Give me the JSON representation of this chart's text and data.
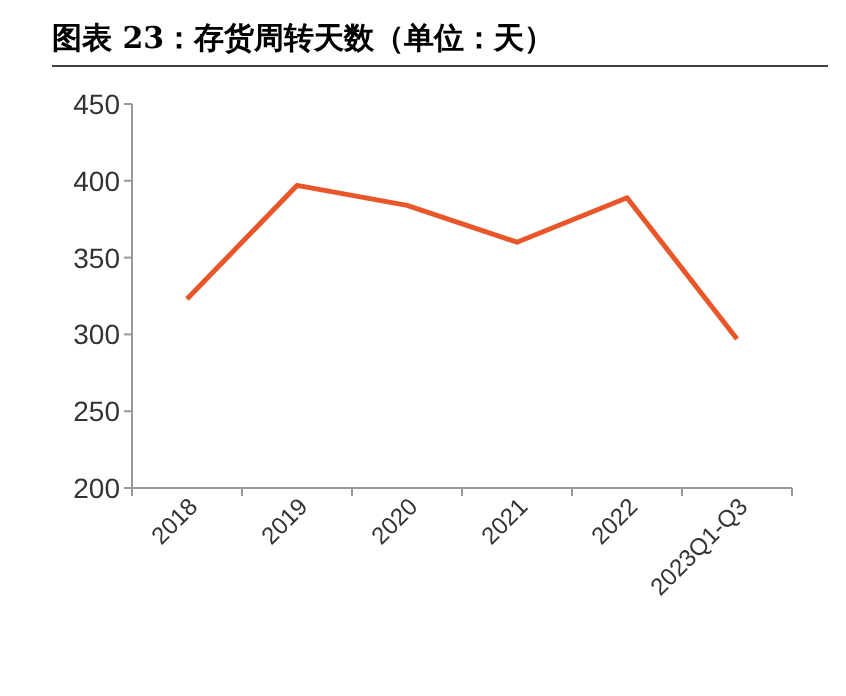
{
  "chart_data": {
    "type": "line",
    "title": "图表 23：存货周转天数（单位：天）",
    "categories": [
      "2018",
      "2019",
      "2020",
      "2021",
      "2022",
      "2023Q1-Q3"
    ],
    "series": [
      {
        "color": "#e8562a",
        "values": [
          323,
          397,
          384,
          360,
          389,
          297
        ]
      }
    ],
    "ylim": [
      200,
      450
    ],
    "yticks": [
      200,
      250,
      300,
      350,
      400,
      450
    ],
    "grid": false,
    "marker": "none",
    "line_style": "solid"
  }
}
